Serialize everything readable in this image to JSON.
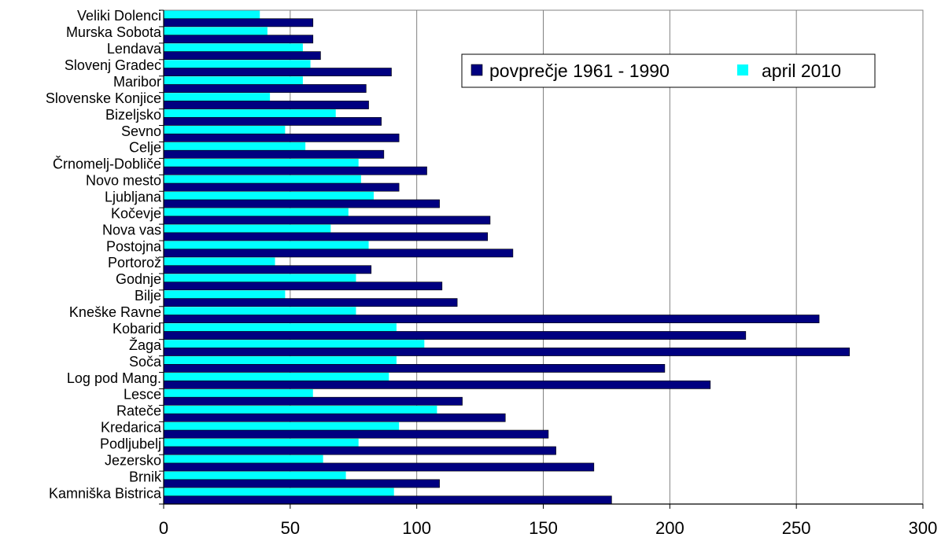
{
  "chart_data": {
    "type": "bar",
    "orientation": "horizontal",
    "categories": [
      "Veliki Dolenci",
      "Murska Sobota",
      "Lendava",
      "Slovenj Gradec",
      "Maribor",
      "Slovenske Konjice",
      "Bizeljsko",
      "Sevno",
      "Celje",
      "Črnomelj-Dobliče",
      "Novo mesto",
      "Ljubljana",
      "Kočevje",
      "Nova vas",
      "Postojna",
      "Portorož",
      "Godnje",
      "Bilje",
      "Kneške Ravne",
      "Kobarid",
      "Žaga",
      "Soča",
      "Log pod Mang.",
      "Lesce",
      "Rateče",
      "Kredarica",
      "Podljubelj",
      "Jezersko",
      "Brnik",
      "Kamniška Bistrica"
    ],
    "series": [
      {
        "name": "povprečje 1961 - 1990",
        "color": "#000080",
        "values": [
          59,
          59,
          62,
          90,
          80,
          81,
          86,
          93,
          87,
          104,
          93,
          109,
          129,
          128,
          138,
          82,
          110,
          116,
          259,
          230,
          271,
          198,
          216,
          118,
          135,
          152,
          155,
          170,
          109,
          177
        ]
      },
      {
        "name": "april 2010",
        "color": "#00FFFF",
        "values": [
          38,
          41,
          55,
          58,
          55,
          42,
          68,
          48,
          56,
          77,
          78,
          83,
          73,
          66,
          81,
          44,
          76,
          48,
          76,
          92,
          103,
          92,
          89,
          59,
          108,
          93,
          77,
          63,
          72,
          91
        ]
      }
    ],
    "xlim": [
      0,
      300
    ],
    "xticks": [
      0,
      50,
      100,
      150,
      200,
      250,
      300
    ],
    "grid": true,
    "legend_position": "top-right"
  }
}
